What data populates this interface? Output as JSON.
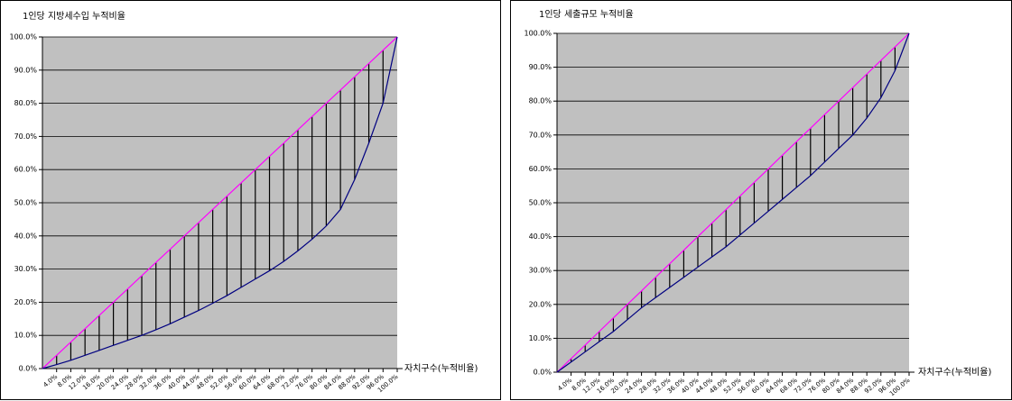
{
  "chart_data": [
    {
      "type": "line",
      "title": "1인당 지방세수입 누적비율",
      "x_label": "자치구수(누적비율)",
      "categories": [
        "4.0%",
        "8.0%",
        "12.0%",
        "16.0%",
        "20.0%",
        "24.0%",
        "28.0%",
        "32.0%",
        "36.0%",
        "40.0%",
        "44.0%",
        "48.0%",
        "52.0%",
        "56.0%",
        "60.0%",
        "64.0%",
        "68.0%",
        "72.0%",
        "76.0%",
        "80.0%",
        "84.0%",
        "88.0%",
        "92.0%",
        "96.0%",
        "100.0%"
      ],
      "series": [
        {
          "color": "#ff00ff",
          "values": [
            4,
            8,
            12,
            16,
            20,
            24,
            28,
            32,
            36,
            40,
            44,
            48,
            52,
            56,
            60,
            64,
            68,
            72,
            76,
            80,
            84,
            88,
            92,
            96,
            100
          ]
        },
        {
          "color": "#000080",
          "values": [
            1.2,
            2.5,
            4,
            5.5,
            7,
            8.5,
            10,
            11.7,
            13.5,
            15.5,
            17.5,
            19.7,
            22,
            24.5,
            27,
            29.5,
            32.3,
            35.5,
            39,
            43,
            48,
            57,
            68,
            80,
            100
          ]
        }
      ],
      "ylim": [
        0,
        100
      ],
      "yticks": [
        {
          "value": 0,
          "label": "0.0%"
        },
        {
          "value": 10,
          "label": "10.0%"
        },
        {
          "value": 20,
          "label": "20.0%"
        },
        {
          "value": 30,
          "label": "30.0%"
        },
        {
          "value": 40,
          "label": "40.0%"
        },
        {
          "value": 50,
          "label": "50.0%"
        },
        {
          "value": 60,
          "label": "60.0%"
        },
        {
          "value": 70,
          "label": "70.0%"
        },
        {
          "value": 80,
          "label": "80.0%"
        },
        {
          "value": 90,
          "label": "90.0%"
        },
        {
          "value": 100,
          "label": "100.0%"
        }
      ],
      "grid": true,
      "background": "#c0c0c0"
    },
    {
      "type": "line",
      "title": "1인당 세출규모 누적비율",
      "x_label": "자치구수(누적비율)",
      "categories": [
        "4.0%",
        "8.0%",
        "12.0%",
        "16.0%",
        "20.0%",
        "24.0%",
        "28.0%",
        "32.0%",
        "36.0%",
        "40.0%",
        "44.0%",
        "48.0%",
        "52.0%",
        "56.0%",
        "60.0%",
        "64.0%",
        "68.0%",
        "72.0%",
        "76.0%",
        "80.0%",
        "84.0%",
        "88.0%",
        "92.0%",
        "96.0%",
        "100.0%"
      ],
      "series": [
        {
          "color": "#ff00ff",
          "values": [
            4,
            8,
            12,
            16,
            20,
            24,
            28,
            32,
            36,
            40,
            44,
            48,
            52,
            56,
            60,
            64,
            68,
            72,
            76,
            80,
            84,
            88,
            92,
            96,
            100
          ]
        },
        {
          "color": "#000080",
          "values": [
            3,
            6,
            9,
            12,
            15.5,
            19,
            22,
            25,
            28,
            31,
            34,
            37,
            40.5,
            44,
            47.5,
            51,
            54.5,
            58,
            62,
            66,
            70,
            75,
            81,
            89,
            100
          ]
        }
      ],
      "ylim": [
        0,
        100
      ],
      "yticks": [
        {
          "value": 0,
          "label": "0.0%"
        },
        {
          "value": 10,
          "label": "10.0%"
        },
        {
          "value": 20,
          "label": "20.0%"
        },
        {
          "value": 30,
          "label": "30.0%"
        },
        {
          "value": 40,
          "label": "40.0%"
        },
        {
          "value": 50,
          "label": "50.0%"
        },
        {
          "value": 60,
          "label": "60.0%"
        },
        {
          "value": 70,
          "label": "70.0%"
        },
        {
          "value": 80,
          "label": "80.0%"
        },
        {
          "value": 90,
          "label": "90.0%"
        },
        {
          "value": 100,
          "label": "100.0%"
        }
      ],
      "grid": true,
      "background": "#c0c0c0"
    }
  ]
}
